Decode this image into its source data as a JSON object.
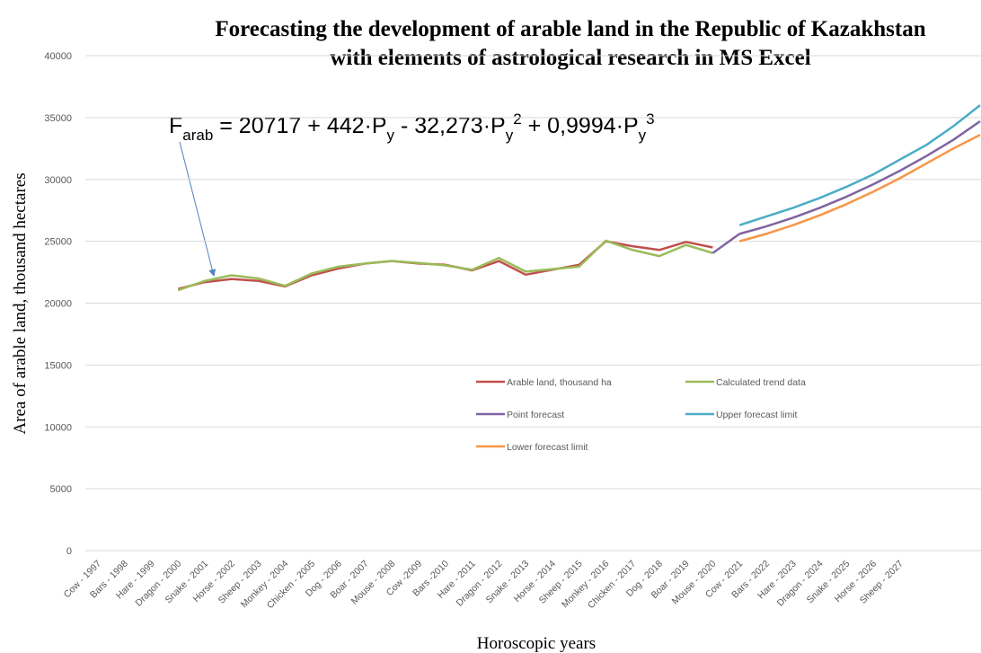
{
  "chart_data": {
    "type": "line",
    "title": [
      "Forecasting the development of arable land in the Republic of Kazakhstan",
      "with elements of astrological research in MS Excel"
    ],
    "x_label": "Horoscopic years",
    "y_label": "Area of arable land, thousand hectares",
    "annotation": [
      "F",
      "arab",
      " = 20717 + 442·P",
      "y",
      "  - 32,273·P",
      "y",
      "2",
      "  + 0,9994·P",
      "y",
      "3"
    ],
    "categories": [
      "Cow - 1997",
      "Bars - 1998",
      "Hare - 1999",
      "Dragon - 2000",
      "Snake - 2001",
      "Horse - 2002",
      "Sheep - 2003",
      "Monkey - 2004",
      "Chicken - 2005",
      "Dog - 2006",
      "Boar - 2007",
      "Mouse - 2008",
      "Cow -2009",
      "Bars -2010",
      "Hare - 2011",
      "Dragon - 2012",
      "Snake - 2013",
      "Horse - 2014",
      "Sheep - 2015",
      "Monkey - 2016",
      "Chicken - 2017",
      "Dog - 2018",
      "Boar - 2019",
      "Mouse - 2020",
      "Cow - 2021",
      "Bars - 2022",
      "Hare - 2023",
      "Dragon - 2024",
      "Snake - 2025",
      "Horse - 2026",
      "Sheep - 2027",
      null,
      null,
      null
    ],
    "series": [
      {
        "name": "Arable land, thousand ha",
        "color": "#c0504d",
        "values": [
          null,
          null,
          null,
          21150,
          21700,
          21950,
          21800,
          21350,
          22250,
          22800,
          23200,
          23400,
          23200,
          23100,
          22650,
          23400,
          22300,
          22700,
          23100,
          25000,
          24600,
          24300,
          24950,
          24500,
          null,
          null,
          null,
          null,
          null,
          null,
          null,
          null,
          null,
          null
        ]
      },
      {
        "name": "Calculated trend data",
        "color": "#9bbb59",
        "values": [
          null,
          null,
          null,
          21050,
          21800,
          22250,
          22000,
          21400,
          22400,
          22950,
          23200,
          23400,
          23250,
          23050,
          22700,
          23650,
          22550,
          22750,
          22950,
          25050,
          24300,
          23800,
          24700,
          24050,
          null,
          null,
          null,
          null,
          null,
          null,
          null,
          null,
          null,
          null
        ]
      },
      {
        "name": "Point forecast",
        "color": "#8064a2",
        "values": [
          null,
          null,
          null,
          null,
          null,
          null,
          null,
          null,
          null,
          null,
          null,
          null,
          null,
          null,
          null,
          null,
          null,
          null,
          null,
          null,
          null,
          null,
          null,
          24050,
          25600,
          26200,
          26900,
          27700,
          28600,
          29600,
          30700,
          31900,
          33200,
          34700
        ]
      },
      {
        "name": "Upper forecast limit",
        "color": "#4bacc6",
        "values": [
          null,
          null,
          null,
          null,
          null,
          null,
          null,
          null,
          null,
          null,
          null,
          null,
          null,
          null,
          null,
          null,
          null,
          null,
          null,
          null,
          null,
          null,
          null,
          null,
          26300,
          27000,
          27700,
          28500,
          29400,
          30400,
          31600,
          32800,
          34300,
          36000
        ]
      },
      {
        "name": "Lower forecast limit",
        "color": "#f79646",
        "values": [
          null,
          null,
          null,
          null,
          null,
          null,
          null,
          null,
          null,
          null,
          null,
          null,
          null,
          null,
          null,
          null,
          null,
          null,
          null,
          null,
          null,
          null,
          null,
          null,
          25000,
          25600,
          26300,
          27100,
          28000,
          29000,
          30100,
          31300,
          32500,
          33600
        ]
      }
    ],
    "ylim": [
      0,
      40000
    ],
    "yticks": [
      0,
      5000,
      10000,
      15000,
      20000,
      25000,
      30000,
      35000,
      40000
    ],
    "grid": true
  }
}
